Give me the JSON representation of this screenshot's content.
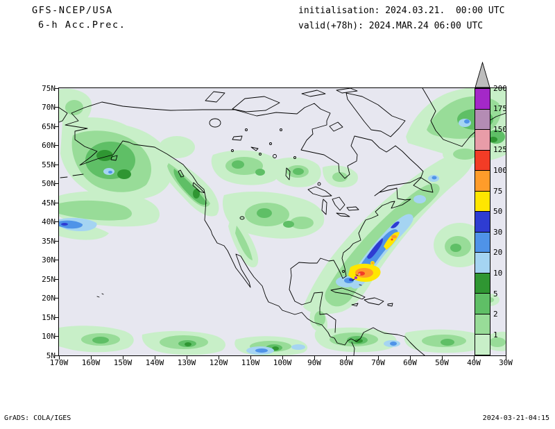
{
  "header": {
    "model": "GFS-NCEP/USA",
    "product": "6-h Acc.Prec.",
    "init_label": "initialisation: 2024.03.21.  00:00 UTC",
    "valid_label": "valid(+78h): 2024.MAR.24 06:00 UTC"
  },
  "map": {
    "lat_ticks": [
      "75N",
      "70N",
      "65N",
      "60N",
      "55N",
      "50N",
      "45N",
      "40N",
      "35N",
      "30N",
      "25N",
      "20N",
      "15N",
      "10N",
      "5N"
    ],
    "lon_ticks": [
      "170W",
      "160W",
      "150W",
      "140W",
      "130W",
      "120W",
      "110W",
      "100W",
      "90W",
      "80W",
      "70W",
      "60W",
      "50W",
      "40W",
      "30W"
    ],
    "background_color": "#e7e7f0"
  },
  "legend": {
    "values": [
      "200",
      "175",
      "150",
      "125",
      "100",
      "75",
      "50",
      "30",
      "20",
      "10",
      "5",
      "2",
      "1"
    ],
    "colors": [
      "#a428c8",
      "#b48cb4",
      "#e89ca8",
      "#f23c26",
      "#ff9c2a",
      "#ffe600",
      "#2e3cd2",
      "#4f93e8",
      "#a5d4f2",
      "#2f9632",
      "#5fbf66",
      "#98dc98",
      "#c8efc8"
    ],
    "arrow_color": "#bdbdbd"
  },
  "footer": {
    "left": "GrADS: COLA/IGES",
    "right": "2024-03-21-04:15"
  }
}
